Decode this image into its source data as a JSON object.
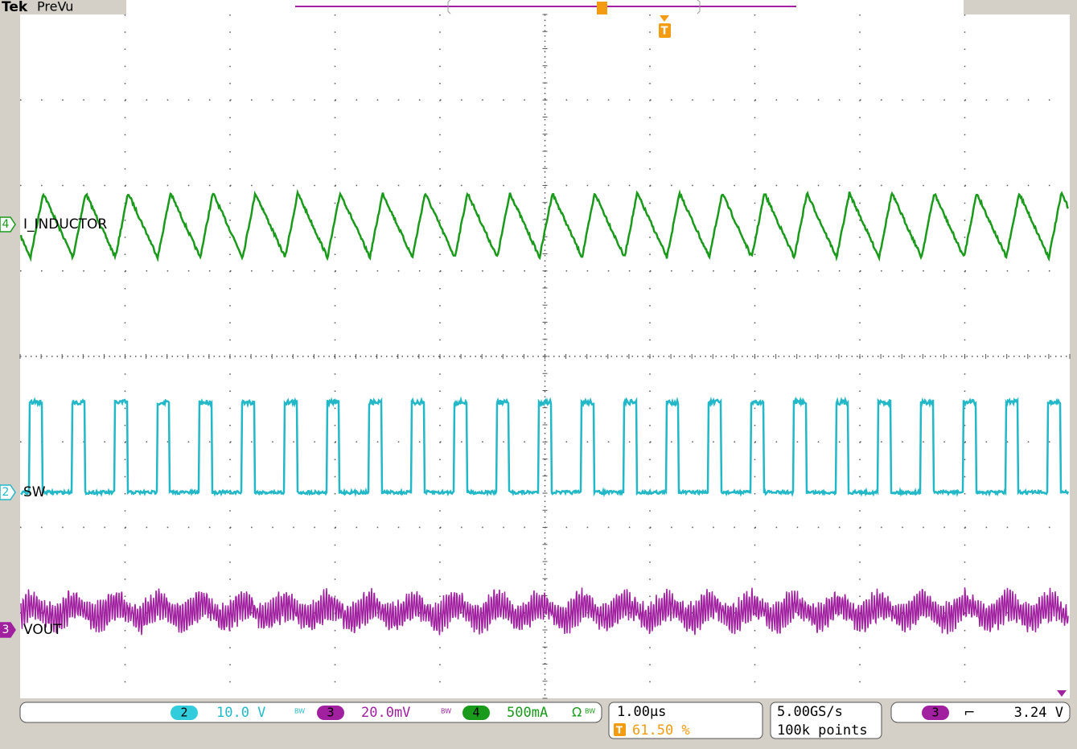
{
  "header": {
    "brand": "Tek",
    "mode": "PreVu",
    "trigger_marker": "T"
  },
  "traces": [
    {
      "marker": "4",
      "label": "I_INDUCTOR"
    },
    {
      "marker": "2",
      "label": "SW"
    },
    {
      "marker": "3",
      "label": "VOUT"
    }
  ],
  "status": {
    "channels": [
      {
        "number": "2",
        "scale": "10.0 V",
        "bw": "BW"
      },
      {
        "number": "3",
        "scale": "20.0mV",
        "bw": "BW"
      },
      {
        "number": "4",
        "scale": "500mA",
        "coupling": "Ω",
        "bw": "BW"
      }
    ],
    "horizontal": {
      "scale": "1.00µs",
      "trigger_icon": "T",
      "trigger_position": "61.50 %"
    },
    "acquisition": {
      "rate": "5.00GS/s",
      "length": "100k points"
    },
    "trigger": {
      "source": "3",
      "slope": "⌐",
      "level": "3.24 V"
    }
  }
}
